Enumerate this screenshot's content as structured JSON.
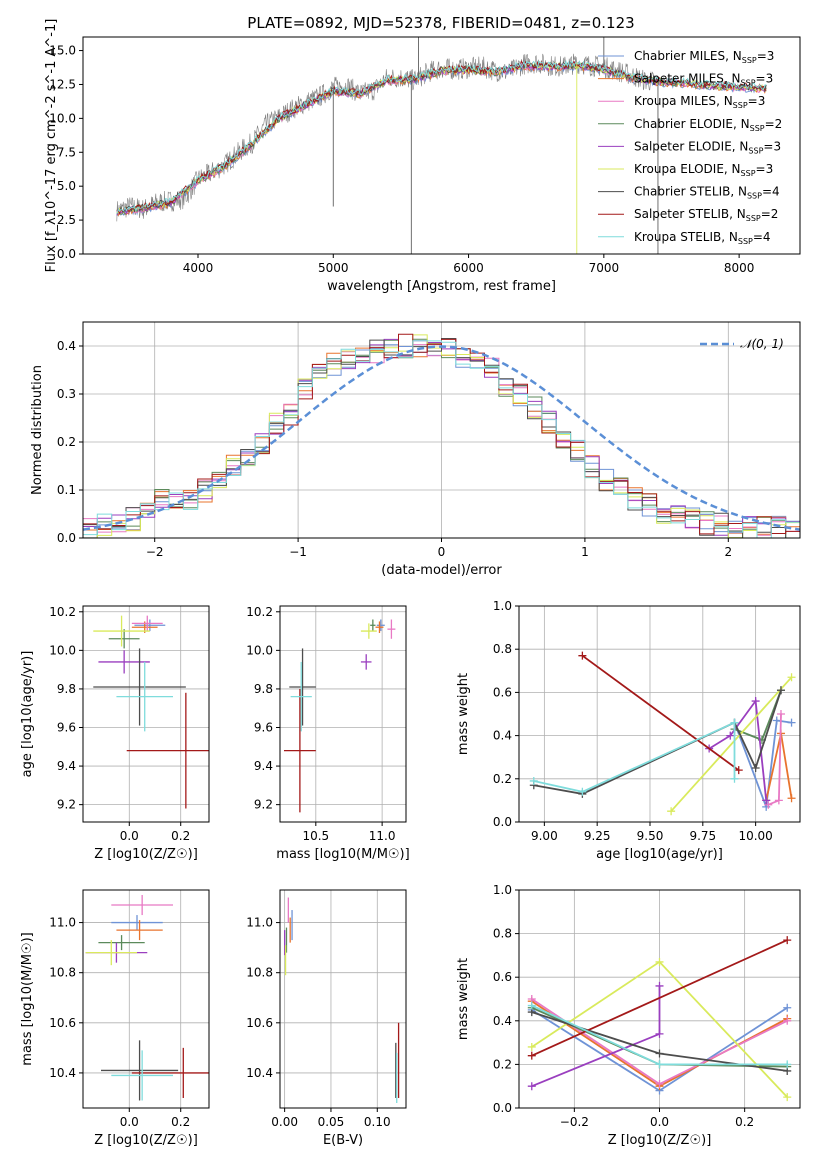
{
  "figure": {
    "title": "PLATE=0892, MJD=52378, FIBERID=0481, z=0.123"
  },
  "colors": {
    "Chabrier MILES": "#6f93d6",
    "Salpeter MILES": "#e8742e",
    "Kroupa MILES": "#e879c4",
    "Chabrier ELODIE": "#5b8a5b",
    "Salpeter ELODIE": "#9a3fbf",
    "Kroupa ELODIE": "#d9ea5c",
    "Chabrier STELIB": "#4d4d4d",
    "Salpeter STELIB": "#a31919",
    "Kroupa STELIB": "#7fdcdc",
    "gaussian": "#5b8fd6",
    "observed": "#808080"
  },
  "chart_data": [
    {
      "type": "line",
      "id": "spectrum",
      "xlabel": "wavelength [Angstrom, rest frame]",
      "ylabel": "Flux [f_λ10^-17 erg cm^-2 s^-1 A^-1]",
      "xlim": [
        3150,
        8450
      ],
      "ylim": [
        0,
        16
      ],
      "xticks": [
        4000,
        5000,
        6000,
        7000,
        8000
      ],
      "yticks": [
        0.0,
        2.5,
        5.0,
        7.5,
        10.0,
        12.5,
        15.0
      ],
      "grid": false,
      "legend_position": "top-right",
      "legend": [
        {
          "name": "Chabrier MILES",
          "nssp": "3"
        },
        {
          "name": "Salpeter MILES",
          "nssp": "3"
        },
        {
          "name": "Kroupa MILES",
          "nssp": "3"
        },
        {
          "name": "Chabrier ELODIE",
          "nssp": "2"
        },
        {
          "name": "Salpeter ELODIE",
          "nssp": "3"
        },
        {
          "name": "Kroupa ELODIE",
          "nssp": "3"
        },
        {
          "name": "Chabrier STELIB",
          "nssp": "4"
        },
        {
          "name": "Salpeter STELIB",
          "nssp": "2"
        },
        {
          "name": "Kroupa STELIB",
          "nssp": "4"
        }
      ],
      "observed_x": [
        3400,
        3500,
        3600,
        3700,
        3800,
        3900,
        4000,
        4100,
        4200,
        4300,
        4400,
        4500,
        4600,
        4700,
        4800,
        4900,
        5000,
        5100,
        5200,
        5300,
        5400,
        5500,
        5600,
        5700,
        5800,
        5900,
        6000,
        6100,
        6200,
        6300,
        6400,
        6500,
        6600,
        6700,
        6800,
        6900,
        7000,
        7100,
        7200,
        7300,
        7400
      ],
      "observed_y": [
        3.2,
        3.5,
        3.3,
        3.8,
        3.9,
        4.1,
        5.5,
        6.0,
        6.6,
        7.5,
        8.2,
        9.5,
        10.1,
        10.7,
        11.2,
        11.6,
        12.3,
        12.4,
        11.8,
        12.1,
        13.0,
        13.0,
        12.8,
        13.4,
        13.7,
        13.6,
        13.7,
        13.8,
        13.5,
        13.4,
        14.0,
        14.1,
        13.9,
        13.8,
        14.1,
        13.9,
        13.8,
        13.5,
        13.2,
        12.8,
        12.7
      ],
      "model_x": [
        3400,
        3600,
        3800,
        4000,
        4200,
        4400,
        4600,
        4800,
        5000,
        5200,
        5400,
        5600,
        5800,
        6000,
        6200,
        6400,
        6600,
        6800,
        7000,
        7200,
        7400,
        7600,
        7800,
        8000,
        8200
      ],
      "model_y": [
        3.1,
        3.4,
        3.8,
        5.4,
        6.5,
        8.1,
        10.0,
        11.0,
        12.0,
        11.8,
        12.8,
        12.9,
        13.5,
        13.6,
        13.4,
        13.9,
        13.8,
        13.9,
        13.6,
        13.0,
        12.7,
        12.6,
        12.4,
        12.3,
        12.2
      ],
      "spikes": [
        {
          "x": 5000,
          "y": 3.5
        },
        {
          "x": 5577,
          "y": 0.0
        },
        {
          "x": 5630,
          "y": 16.0
        },
        {
          "x": 7000,
          "y": 16.0
        },
        {
          "x": 6800,
          "y": 0.0
        },
        {
          "x": 7400,
          "y": 0.0
        }
      ]
    },
    {
      "type": "line",
      "id": "residuals",
      "xlabel": "(data-model)/error",
      "ylabel": "Normed distribution",
      "xlim": [
        -2.5,
        2.5
      ],
      "ylim": [
        0,
        0.45
      ],
      "xticks": [
        -2,
        -1,
        0,
        1,
        2
      ],
      "yticks": [
        0.0,
        0.1,
        0.2,
        0.3,
        0.4
      ],
      "grid": true,
      "legend_position": "top-right",
      "legend_label": "𝒩(0, 1)",
      "bin_width": 0.1,
      "bins_start": -2.5,
      "hist_values": [
        0.02,
        0.03,
        0.03,
        0.04,
        0.05,
        0.08,
        0.07,
        0.08,
        0.1,
        0.12,
        0.15,
        0.17,
        0.2,
        0.24,
        0.26,
        0.31,
        0.34,
        0.36,
        0.37,
        0.38,
        0.39,
        0.4,
        0.4,
        0.4,
        0.39,
        0.4,
        0.38,
        0.37,
        0.35,
        0.32,
        0.3,
        0.27,
        0.24,
        0.2,
        0.18,
        0.15,
        0.12,
        0.1,
        0.08,
        0.07,
        0.05,
        0.05,
        0.04,
        0.03,
        0.03,
        0.02,
        0.02,
        0.02,
        0.02,
        0.02
      ]
    },
    {
      "type": "scatter",
      "id": "age-vs-Z",
      "xlabel": "Z [log10(Z/Z☉)]",
      "ylabel": "age [log10(age/yr)]",
      "xlim": [
        -0.18,
        0.31
      ],
      "ylim": [
        9.11,
        10.23
      ],
      "xticks": [
        0.0,
        0.2
      ],
      "yticks": [
        9.2,
        9.4,
        9.6,
        9.8,
        10.0,
        10.2
      ],
      "grid": true,
      "points": [
        {
          "model": "Chabrier MILES",
          "x": 0.08,
          "y": 10.13,
          "xerr": 0.06,
          "yerr": 0.03
        },
        {
          "model": "Salpeter MILES",
          "x": 0.06,
          "y": 10.12,
          "xerr": 0.05,
          "yerr": 0.03
        },
        {
          "model": "Kroupa MILES",
          "x": 0.07,
          "y": 10.14,
          "xerr": 0.06,
          "yerr": 0.04
        },
        {
          "model": "Chabrier ELODIE",
          "x": -0.02,
          "y": 10.06,
          "xerr": 0.06,
          "yerr": 0.05
        },
        {
          "model": "Salpeter ELODIE",
          "x": -0.02,
          "y": 9.94,
          "xerr": 0.1,
          "yerr": 0.06
        },
        {
          "model": "Kroupa ELODIE",
          "x": -0.03,
          "y": 10.1,
          "xerr": 0.11,
          "yerr": 0.08
        },
        {
          "model": "Chabrier STELIB",
          "x": 0.04,
          "y": 9.81,
          "xerr": 0.18,
          "yerr": 0.2
        },
        {
          "model": "Salpeter STELIB",
          "x": 0.22,
          "y": 9.48,
          "xerr": 0.23,
          "yerr": 0.3
        },
        {
          "model": "Kroupa STELIB",
          "x": 0.06,
          "y": 9.76,
          "xerr": 0.11,
          "yerr": 0.18
        }
      ]
    },
    {
      "type": "scatter",
      "id": "age-vs-mass",
      "xlabel": "mass [log10(M/M☉)]",
      "ylabel": "",
      "xlim": [
        10.23,
        11.18
      ],
      "ylim": [
        9.11,
        10.23
      ],
      "xticks": [
        10.5,
        11.0
      ],
      "yticks": [
        9.2,
        9.4,
        9.6,
        9.8,
        10.0,
        10.2
      ],
      "grid": true,
      "points": [
        {
          "model": "Chabrier MILES",
          "x": 10.99,
          "y": 10.13,
          "xerr": 0.03,
          "yerr": 0.03
        },
        {
          "model": "Salpeter MILES",
          "x": 10.98,
          "y": 10.12,
          "xerr": 0.03,
          "yerr": 0.03
        },
        {
          "model": "Kroupa MILES",
          "x": 11.07,
          "y": 10.11,
          "xerr": 0.03,
          "yerr": 0.05
        },
        {
          "model": "Chabrier ELODIE",
          "x": 10.93,
          "y": 10.13,
          "xerr": 0.02,
          "yerr": 0.03
        },
        {
          "model": "Salpeter ELODIE",
          "x": 10.88,
          "y": 9.94,
          "xerr": 0.04,
          "yerr": 0.04
        },
        {
          "model": "Kroupa ELODIE",
          "x": 10.9,
          "y": 10.1,
          "xerr": 0.06,
          "yerr": 0.04
        },
        {
          "model": "Chabrier STELIB",
          "x": 10.4,
          "y": 9.81,
          "xerr": 0.1,
          "yerr": 0.2
        },
        {
          "model": "Salpeter STELIB",
          "x": 10.38,
          "y": 9.48,
          "xerr": 0.12,
          "yerr": 0.32
        },
        {
          "model": "Kroupa STELIB",
          "x": 10.39,
          "y": 9.76,
          "xerr": 0.08,
          "yerr": 0.18
        }
      ]
    },
    {
      "type": "line",
      "id": "weight-vs-age",
      "xlabel": "age [log10(age/yr)]",
      "ylabel": "mass weight",
      "xlim": [
        8.88,
        10.21
      ],
      "ylim": [
        0,
        1
      ],
      "xticks": [
        9.0,
        9.25,
        9.5,
        9.75,
        10.0
      ],
      "yticks": [
        0.0,
        0.2,
        0.4,
        0.6,
        0.8,
        1.0
      ],
      "grid": true,
      "series": [
        {
          "model": "Chabrier MILES",
          "x": [
            9.9,
            10.05,
            10.1,
            10.17
          ],
          "y": [
            0.46,
            0.07,
            0.47,
            0.46
          ]
        },
        {
          "model": "Salpeter MILES",
          "x": [
            10.05,
            10.12,
            10.17
          ],
          "y": [
            0.1,
            0.41,
            0.11
          ]
        },
        {
          "model": "Kroupa MILES",
          "x": [
            10.06,
            10.11,
            10.12
          ],
          "y": [
            0.08,
            0.1,
            0.5
          ]
        },
        {
          "model": "Chabrier ELODIE",
          "x": [
            9.9,
            10.03,
            10.12
          ],
          "y": [
            0.43,
            0.38,
            0.61
          ]
        },
        {
          "model": "Salpeter ELODIE",
          "x": [
            9.78,
            9.88,
            10.0,
            10.05
          ],
          "y": [
            0.34,
            0.4,
            0.56,
            0.1
          ]
        },
        {
          "model": "Kroupa ELODIE",
          "x": [
            9.6,
            10.17
          ],
          "y": [
            0.05,
            0.67
          ]
        },
        {
          "model": "Chabrier STELIB",
          "x": [
            8.95,
            9.18,
            9.9,
            10.0,
            10.12
          ],
          "y": [
            0.17,
            0.13,
            0.46,
            0.25,
            0.61
          ]
        },
        {
          "model": "Salpeter STELIB",
          "x": [
            9.18,
            9.92
          ],
          "y": [
            0.77,
            0.24
          ]
        },
        {
          "model": "Kroupa STELIB",
          "x": [
            8.95,
            9.18,
            9.9,
            9.9
          ],
          "y": [
            0.19,
            0.14,
            0.46,
            0.2
          ]
        }
      ]
    },
    {
      "type": "scatter",
      "id": "mass-vs-Z",
      "xlabel": "Z [log10(Z/Z☉)]",
      "ylabel": "mass [log10(M/M☉)]",
      "xlim": [
        -0.18,
        0.31
      ],
      "ylim": [
        10.26,
        11.13
      ],
      "xticks": [
        0.0,
        0.2
      ],
      "yticks": [
        10.4,
        10.6,
        10.8,
        11.0
      ],
      "grid": true,
      "points": [
        {
          "model": "Chabrier MILES",
          "x": 0.03,
          "y": 11.0,
          "xerr": 0.1,
          "yerr": 0.03
        },
        {
          "model": "Salpeter MILES",
          "x": 0.04,
          "y": 10.97,
          "xerr": 0.09,
          "yerr": 0.04
        },
        {
          "model": "Kroupa MILES",
          "x": 0.05,
          "y": 11.07,
          "xerr": 0.12,
          "yerr": 0.04
        },
        {
          "model": "Chabrier ELODIE",
          "x": -0.03,
          "y": 10.92,
          "xerr": 0.09,
          "yerr": 0.03
        },
        {
          "model": "Salpeter ELODIE",
          "x": -0.05,
          "y": 10.88,
          "xerr": 0.12,
          "yerr": 0.04
        },
        {
          "model": "Kroupa ELODIE",
          "x": -0.07,
          "y": 10.88,
          "xerr": 0.1,
          "yerr": 0.05
        },
        {
          "model": "Chabrier STELIB",
          "x": 0.04,
          "y": 10.41,
          "xerr": 0.15,
          "yerr": 0.12
        },
        {
          "model": "Salpeter STELIB",
          "x": 0.21,
          "y": 10.4,
          "xerr": 0.2,
          "yerr": 0.1
        },
        {
          "model": "Kroupa STELIB",
          "x": 0.05,
          "y": 10.39,
          "xerr": 0.12,
          "yerr": 0.1
        }
      ]
    },
    {
      "type": "scatter",
      "id": "mass-vs-EBV",
      "xlabel": "E(B-V)",
      "ylabel": "",
      "xlim": [
        -0.005,
        0.131
      ],
      "ylim": [
        10.26,
        11.13
      ],
      "xticks": [
        0.0,
        0.05,
        0.1
      ],
      "yticks": [
        10.4,
        10.6,
        10.8,
        11.0
      ],
      "grid": true,
      "points": [
        {
          "model": "Chabrier MILES",
          "x": 0.008,
          "y": 10.99,
          "xerr": 0.0,
          "yerr": 0.06
        },
        {
          "model": "Salpeter MILES",
          "x": 0.006,
          "y": 10.97,
          "xerr": 0.0,
          "yerr": 0.05
        },
        {
          "model": "Kroupa MILES",
          "x": 0.004,
          "y": 11.05,
          "xerr": 0.0,
          "yerr": 0.05
        },
        {
          "model": "Chabrier ELODIE",
          "x": 0.002,
          "y": 10.93,
          "xerr": 0.0,
          "yerr": 0.05
        },
        {
          "model": "Salpeter ELODIE",
          "x": 0.0,
          "y": 10.92,
          "xerr": 0.0,
          "yerr": 0.05
        },
        {
          "model": "Kroupa ELODIE",
          "x": 0.001,
          "y": 10.85,
          "xerr": 0.0,
          "yerr": 0.06
        },
        {
          "model": "Chabrier STELIB",
          "x": 0.12,
          "y": 10.41,
          "xerr": 0.0,
          "yerr": 0.11
        },
        {
          "model": "Salpeter STELIB",
          "x": 0.123,
          "y": 10.45,
          "xerr": 0.0,
          "yerr": 0.15
        },
        {
          "model": "Kroupa STELIB",
          "x": 0.121,
          "y": 10.38,
          "xerr": 0.0,
          "yerr": 0.1
        }
      ]
    },
    {
      "type": "line",
      "id": "weight-vs-Z",
      "xlabel": "Z [log10(Z/Z☉)]",
      "ylabel": "mass weight",
      "xlim": [
        -0.33,
        0.33
      ],
      "ylim": [
        0,
        1
      ],
      "xticks": [
        -0.2,
        0.0,
        0.2
      ],
      "yticks": [
        0.0,
        0.2,
        0.4,
        0.6,
        0.8,
        1.0
      ],
      "grid": true,
      "series": [
        {
          "model": "Chabrier MILES",
          "x": [
            -0.3,
            0.0,
            0.3
          ],
          "y": [
            0.45,
            0.08,
            0.46
          ]
        },
        {
          "model": "Salpeter MILES",
          "x": [
            -0.3,
            0.0,
            0.3
          ],
          "y": [
            0.49,
            0.1,
            0.41
          ]
        },
        {
          "model": "Kroupa MILES",
          "x": [
            -0.3,
            0.0,
            0.3
          ],
          "y": [
            0.5,
            0.11,
            0.4
          ]
        },
        {
          "model": "Chabrier ELODIE",
          "x": [
            -0.3,
            0.0,
            0.3
          ],
          "y": [
            0.46,
            0.2,
            0.19
          ]
        },
        {
          "model": "Salpeter ELODIE",
          "x": [
            -0.3,
            0.0,
            0.0
          ],
          "y": [
            0.1,
            0.34,
            0.56
          ]
        },
        {
          "model": "Kroupa ELODIE",
          "x": [
            -0.3,
            0.0,
            0.3
          ],
          "y": [
            0.28,
            0.67,
            0.05
          ]
        },
        {
          "model": "Chabrier STELIB",
          "x": [
            -0.3,
            0.0,
            0.3
          ],
          "y": [
            0.44,
            0.25,
            0.17
          ]
        },
        {
          "model": "Salpeter STELIB",
          "x": [
            -0.3,
            0.3
          ],
          "y": [
            0.24,
            0.77
          ]
        },
        {
          "model": "Kroupa STELIB",
          "x": [
            -0.3,
            0.0,
            0.3
          ],
          "y": [
            0.47,
            0.2,
            0.2
          ]
        }
      ]
    }
  ]
}
